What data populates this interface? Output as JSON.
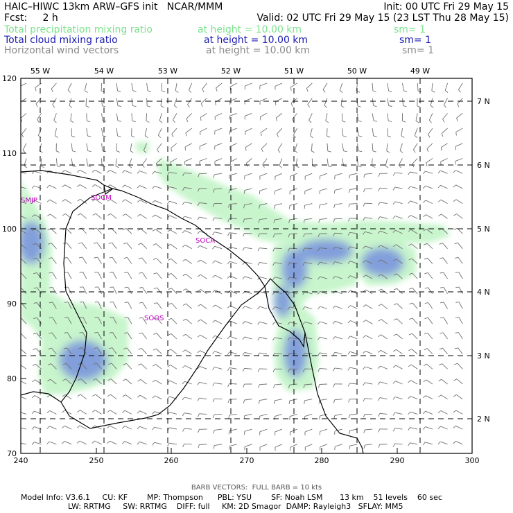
{
  "header": {
    "line1_left": "HAIC–HIWC 13km ARW–GFS init   NCAR/MMM",
    "line1_right": "Init: 00 UTC Fri 29 May 15",
    "line2_left": "Fcst:     2 h",
    "line2_right": "Valid: 02 UTC Fri 29 May 15 (23 LST Thu 28 May 15)",
    "fields": [
      {
        "name": "Total precipitation mixing ratio",
        "height": "at height = 10.00 km",
        "sm": "sm= 1",
        "color": "#7be28c"
      },
      {
        "name": "Total cloud mixing ratio",
        "height": "at height = 10.00 km",
        "sm": "sm= 1",
        "color": "#1a1ab4"
      },
      {
        "name": "Horizontal wind vectors",
        "height": "at height = 10.00 km",
        "sm": "sm= 1",
        "color": "#8a8a8a"
      }
    ]
  },
  "map": {
    "x_ticks": [
      "240",
      "250",
      "260",
      "270",
      "280",
      "290",
      "300"
    ],
    "y_ticks": [
      "70",
      "80",
      "90",
      "100",
      "110",
      "120"
    ],
    "lon_labels": [
      "55 W",
      "54 W",
      "53 W",
      "52 W",
      "51 W",
      "50 W",
      "49 W"
    ],
    "lat_labels": [
      "7 N",
      "6 N",
      "5 N",
      "4 N",
      "3 N",
      "2 N"
    ],
    "stations": [
      "SMJP",
      "SOCM",
      "SOCA",
      "SOOS"
    ],
    "precip_color": "#c8f5cc",
    "cloud_color": "#6b82e0"
  },
  "footer": {
    "barb_note": "BARB VECTORS:  FULL BARB = 10 kts",
    "line1": "Model Info: V3.6.1     CU: KF        MP: Thompson      PBL: YSU        SF: Noah LSM       13 km    51 levels    60 sec",
    "line2": "LW: RRTMG     SW: RRTMG    DIFF: full     KM: 2D Smagor  DAMP: Rayleigh3   SFLAY: MM5"
  }
}
